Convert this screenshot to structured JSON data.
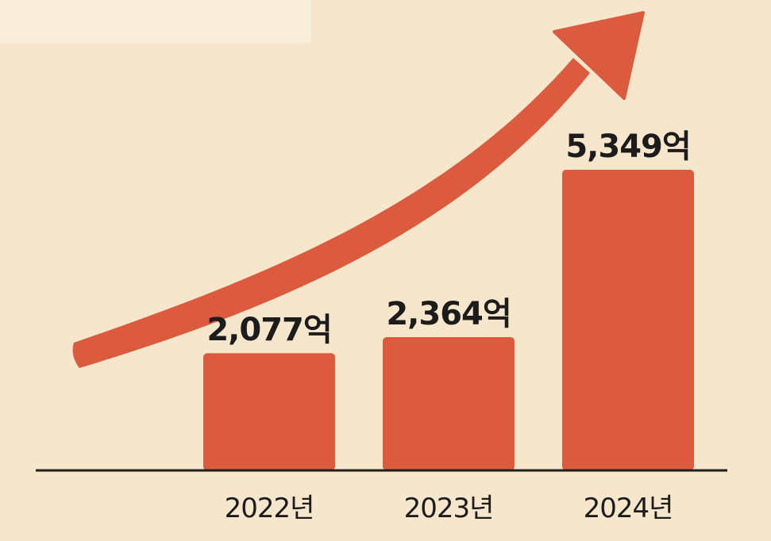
{
  "colors": {
    "background": "#f5e6cc",
    "bar": "#dc5a3e",
    "arrow": "#dc5a3e",
    "axis": "#1c1c1c",
    "text": "#1c1c1c"
  },
  "chart_data": {
    "type": "bar",
    "categories": [
      "2022년",
      "2023년",
      "2024년"
    ],
    "values": [
      2077,
      2364,
      5349
    ],
    "data_labels": [
      "2,077억",
      "2,364억",
      "5,349억"
    ],
    "ylim": [
      0,
      5349
    ],
    "grid": false,
    "legend": "none",
    "annotations": [
      "upward-trend-arrow"
    ]
  }
}
